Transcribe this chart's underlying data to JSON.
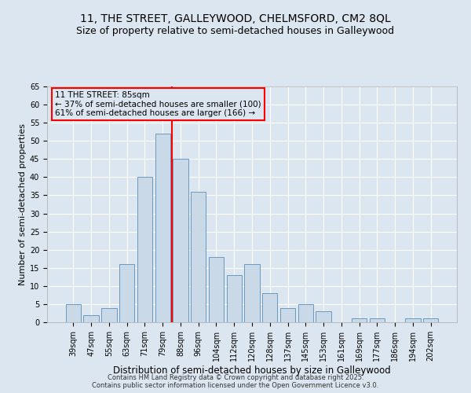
{
  "title": "11, THE STREET, GALLEYWOOD, CHELMSFORD, CM2 8QL",
  "subtitle": "Size of property relative to semi-detached houses in Galleywood",
  "xlabel": "Distribution of semi-detached houses by size in Galleywood",
  "ylabel": "Number of semi-detached properties",
  "bar_labels": [
    "39sqm",
    "47sqm",
    "55sqm",
    "63sqm",
    "71sqm",
    "79sqm",
    "88sqm",
    "96sqm",
    "104sqm",
    "112sqm",
    "120sqm",
    "128sqm",
    "137sqm",
    "145sqm",
    "153sqm",
    "161sqm",
    "169sqm",
    "177sqm",
    "186sqm",
    "194sqm",
    "202sqm"
  ],
  "bar_values": [
    5,
    2,
    4,
    16,
    40,
    52,
    45,
    36,
    18,
    13,
    16,
    8,
    4,
    5,
    3,
    0,
    1,
    1,
    0,
    1,
    1
  ],
  "bar_color": "#c9d9e8",
  "bar_edge_color": "#5b8db8",
  "vline_x": 5.5,
  "vline_color": "red",
  "annotation_title": "11 THE STREET: 85sqm",
  "annotation_line1": "← 37% of semi-detached houses are smaller (100)",
  "annotation_line2": "61% of semi-detached houses are larger (166) →",
  "annotation_box_color": "red",
  "ylim": [
    0,
    65
  ],
  "yticks": [
    0,
    5,
    10,
    15,
    20,
    25,
    30,
    35,
    40,
    45,
    50,
    55,
    60,
    65
  ],
  "background_color": "#dce6f0",
  "grid_color": "#ffffff",
  "footer1": "Contains HM Land Registry data © Crown copyright and database right 2025.",
  "footer2": "Contains public sector information licensed under the Open Government Licence v3.0.",
  "title_fontsize": 10,
  "subtitle_fontsize": 9,
  "xlabel_fontsize": 8.5,
  "ylabel_fontsize": 8,
  "tick_fontsize": 7,
  "annotation_fontsize": 7.5,
  "footer_fontsize": 6
}
